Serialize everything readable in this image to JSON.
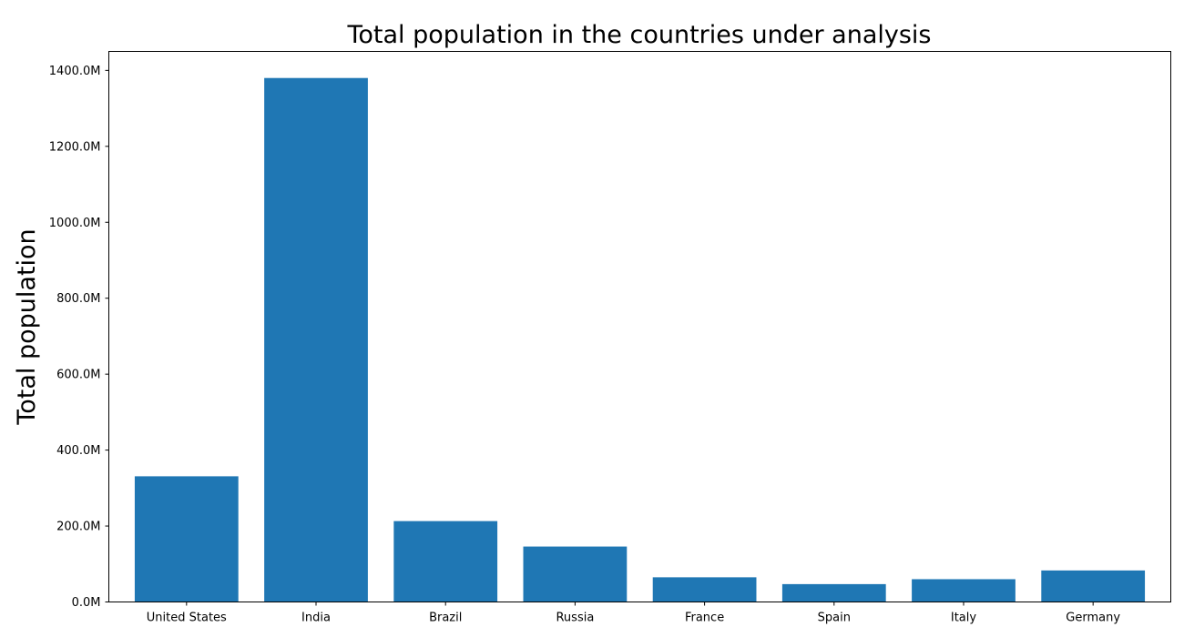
{
  "chart_data": {
    "type": "bar",
    "title": "Total population in the countries under analysis",
    "xlabel": "",
    "ylabel": "Total population",
    "categories": [
      "United States",
      "India",
      "Brazil",
      "Russia",
      "France",
      "Spain",
      "Italy",
      "Germany"
    ],
    "values": [
      331,
      1380,
      213,
      146,
      65,
      47,
      60,
      83
    ],
    "value_unit": "M",
    "ylim": [
      0,
      1450
    ],
    "yticks": [
      0,
      200,
      400,
      600,
      800,
      1000,
      1200,
      1400
    ],
    "ytick_labels": [
      "0.0M",
      "200.0M",
      "400.0M",
      "600.0M",
      "800.0M",
      "1000.0M",
      "1200.0M",
      "1400.0M"
    ],
    "bar_color": "#1f77b4",
    "grid": false,
    "legend": "none"
  }
}
